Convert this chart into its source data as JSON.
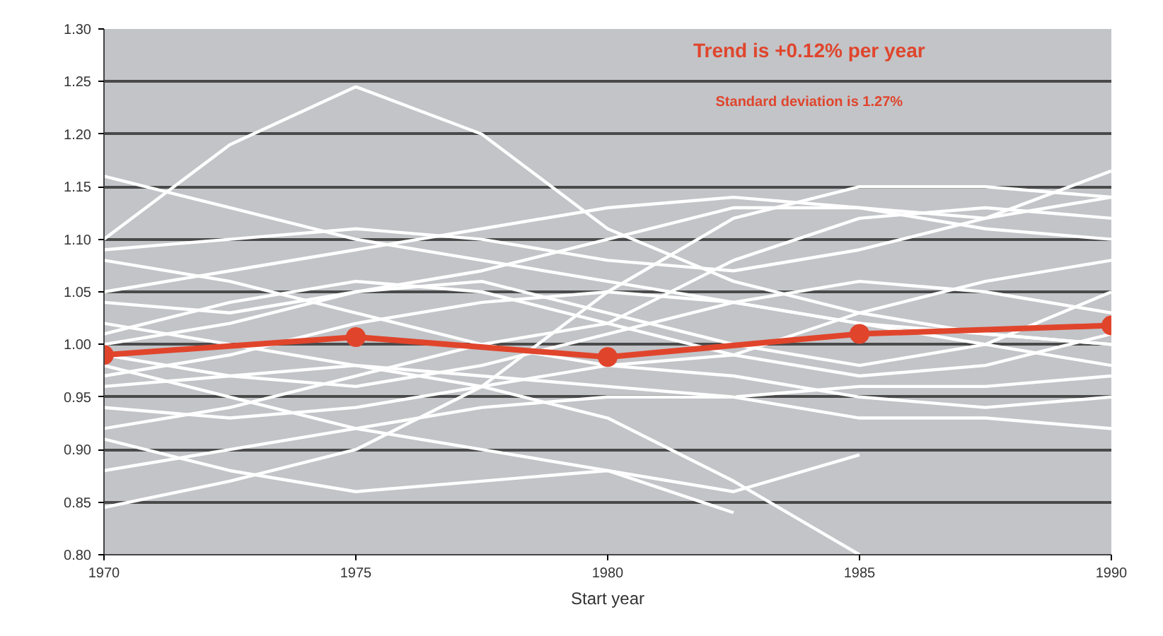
{
  "chart_data": {
    "type": "line",
    "xlabel": "Start year",
    "annotations": [
      "Trend is +0.12% per year",
      "Standard deviation is 1.27%"
    ],
    "x": [
      1970,
      1972.5,
      1975,
      1977.5,
      1980,
      1982.5,
      1985,
      1987.5,
      1990
    ],
    "xlim": [
      1970,
      1990
    ],
    "xticks": [
      1970,
      1975,
      1980,
      1985,
      1990
    ],
    "ylim": [
      0.8,
      1.3
    ],
    "yticks": [
      {
        "value": 0.8,
        "label": "0.80"
      },
      {
        "value": 0.85,
        "label": "0.85"
      },
      {
        "value": 0.9,
        "label": "0.90"
      },
      {
        "value": 0.95,
        "label": "0.95"
      },
      {
        "value": 1.0,
        "label": "1.00"
      },
      {
        "value": 1.05,
        "label": "1.05"
      },
      {
        "value": 1.1,
        "label": "1.10"
      },
      {
        "value": 1.15,
        "label": "1.15"
      },
      {
        "value": 1.2,
        "label": "1.20"
      },
      {
        "value": 1.25,
        "label": "1.25"
      },
      {
        "value": 1.3,
        "label": "1.30"
      }
    ],
    "grid": "y",
    "series": [
      {
        "color": "#ffffff",
        "values": [
          1.1,
          1.19,
          1.245,
          1.2,
          1.11,
          1.06,
          1.03,
          1.01,
          1.0
        ]
      },
      {
        "color": "#ffffff",
        "values": [
          1.16,
          1.13,
          1.1,
          1.08,
          1.06,
          1.04,
          1.02,
          1.01,
          1.0
        ]
      },
      {
        "color": "#ffffff",
        "values": [
          0.845,
          0.87,
          0.9,
          0.96,
          1.05,
          1.12,
          1.15,
          1.15,
          1.14
        ]
      },
      {
        "color": "#ffffff",
        "values": [
          0.92,
          0.94,
          0.97,
          1.0,
          1.02,
          1.08,
          1.12,
          1.13,
          1.12
        ]
      },
      {
        "color": "#ffffff",
        "values": [
          0.91,
          0.88,
          0.86,
          0.87,
          0.88,
          0.86,
          0.895,
          null,
          null
        ]
      },
      {
        "color": "#ffffff",
        "values": [
          0.96,
          0.97,
          0.98,
          0.96,
          0.93,
          0.87,
          0.8,
          null,
          null
        ]
      },
      {
        "color": "#ffffff",
        "values": [
          0.98,
          0.95,
          0.92,
          0.9,
          0.88,
          0.84,
          null,
          null,
          null
        ]
      },
      {
        "color": "#ffffff",
        "values": [
          1.09,
          1.1,
          1.11,
          1.1,
          1.08,
          1.07,
          1.09,
          1.12,
          1.165
        ]
      },
      {
        "color": "#ffffff",
        "values": [
          1.05,
          1.07,
          1.09,
          1.11,
          1.13,
          1.14,
          1.13,
          1.12,
          1.14
        ]
      },
      {
        "color": "#ffffff",
        "values": [
          1.0,
          1.02,
          1.05,
          1.07,
          1.1,
          1.13,
          1.13,
          1.11,
          1.1
        ]
      },
      {
        "color": "#ffffff",
        "values": [
          1.08,
          1.06,
          1.03,
          1.0,
          0.98,
          0.99,
          1.03,
          1.06,
          1.08
        ]
      },
      {
        "color": "#ffffff",
        "values": [
          1.04,
          1.03,
          1.05,
          1.06,
          1.03,
          1.0,
          0.98,
          1.0,
          1.05
        ]
      },
      {
        "color": "#ffffff",
        "values": [
          0.97,
          0.99,
          1.02,
          1.04,
          1.05,
          1.04,
          1.02,
          1.0,
          0.98
        ]
      },
      {
        "color": "#ffffff",
        "values": [
          0.94,
          0.93,
          0.94,
          0.96,
          0.98,
          0.97,
          0.95,
          0.94,
          0.95
        ]
      },
      {
        "color": "#ffffff",
        "values": [
          1.02,
          1.0,
          0.98,
          0.97,
          0.96,
          0.95,
          0.93,
          0.93,
          0.92
        ]
      },
      {
        "color": "#ffffff",
        "values": [
          0.88,
          0.9,
          0.92,
          0.94,
          0.95,
          0.95,
          0.96,
          0.96,
          0.97
        ]
      },
      {
        "color": "#ffffff",
        "values": [
          1.01,
          1.04,
          1.06,
          1.05,
          1.02,
          0.99,
          0.97,
          0.98,
          1.01
        ]
      },
      {
        "color": "#ffffff",
        "values": [
          0.99,
          0.97,
          0.96,
          0.98,
          1.01,
          1.04,
          1.06,
          1.05,
          1.03
        ]
      },
      {
        "color": "#e0452c",
        "marker": "circle",
        "x": [
          1970,
          1975,
          1980,
          1985,
          1990
        ],
        "values": [
          0.99,
          1.007,
          0.988,
          1.01,
          1.018
        ]
      }
    ]
  }
}
